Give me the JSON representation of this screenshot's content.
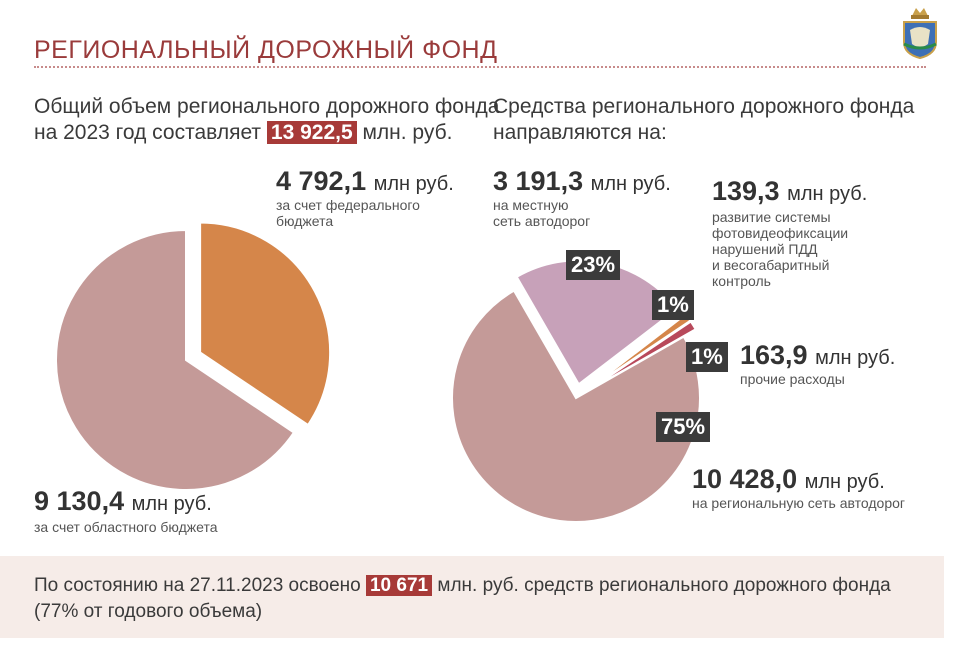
{
  "header": {
    "title": "РЕГИОНАЛЬНЫЙ ДОРОЖНЫЙ ФОНД"
  },
  "left": {
    "lead_line1": "Общий объем регионального дорожного фонда",
    "lead_line2_pre": "на 2023 год составляет ",
    "lead_highlight": "13 922,5",
    "lead_line2_post": " млн. руб.",
    "federal_value": "4 792,1",
    "federal_unit": "млн руб.",
    "federal_desc1": "за счет федерального",
    "federal_desc2": "бюджета",
    "regional_value": "9 130,4",
    "regional_unit": "млн руб.",
    "regional_desc": "за счет областного бюджета"
  },
  "right": {
    "lead_line1": "Средства регионального дорожного фонда",
    "lead_line2": "направляются на:",
    "local_value": "3 191,3",
    "local_unit": "млн руб.",
    "local_desc1": "на местную",
    "local_desc2": "сеть автодорог",
    "photo_value": "139,3",
    "photo_unit": "млн руб.",
    "photo_desc1": "развитие системы",
    "photo_desc2": "фотовидеофиксации",
    "photo_desc3": "нарушений ПДД",
    "photo_desc4": "и весогабаритный",
    "photo_desc5": "контроль",
    "other_value": "163,9",
    "other_unit": "млн руб.",
    "other_desc": "прочие расходы",
    "regional_value": "10 428,0",
    "regional_unit": "млн руб.",
    "regional_desc": "на региональную сеть автодорог",
    "pct_local": "23%",
    "pct_photo": "1%",
    "pct_other": "1%",
    "pct_regional": "75%"
  },
  "footer": {
    "pre": "По состоянию на 27.11.2023 освоено ",
    "highlight": "10 671",
    "post": " млн. руб. средств регионального дорожного фонда",
    "line2": "(77% от годового объема)"
  },
  "colors": {
    "title": "#9a3b3b",
    "highlight": "#a73a38",
    "pie_pink": "#c49a98",
    "pie_orange": "#d5864a",
    "pie_lilac": "#c7a1b9",
    "pie_red": "#b8495b",
    "badge": "#3b3b3b"
  },
  "chart_data": [
    {
      "type": "pie",
      "title": "",
      "total": 13922.5,
      "slices": [
        {
          "label": "4 792,1 млн руб. за счет федерального бюджета",
          "value": 4792.1,
          "color": "#d5864a",
          "exploded": true
        },
        {
          "label": "9 130,4 млн руб. за счет областного бюджета",
          "value": 9130.4,
          "color": "#c49a98",
          "exploded": false
        }
      ]
    },
    {
      "type": "pie",
      "title": "",
      "total": 13922.5,
      "slices": [
        {
          "label": "на местную сеть автодорог",
          "value": 3191.3,
          "percent": 23,
          "color": "#c7a1b9",
          "exploded": true
        },
        {
          "label": "развитие системы фотовидеофиксации нарушений ПДД и весогабаритный контроль",
          "value": 139.3,
          "percent": 1,
          "color": "#d5864a",
          "exploded": true
        },
        {
          "label": "прочие расходы",
          "value": 163.9,
          "percent": 1,
          "color": "#b8495b",
          "exploded": true
        },
        {
          "label": "на региональную сеть автодорог",
          "value": 10428.0,
          "percent": 75,
          "color": "#c49a98",
          "exploded": false
        }
      ]
    }
  ]
}
